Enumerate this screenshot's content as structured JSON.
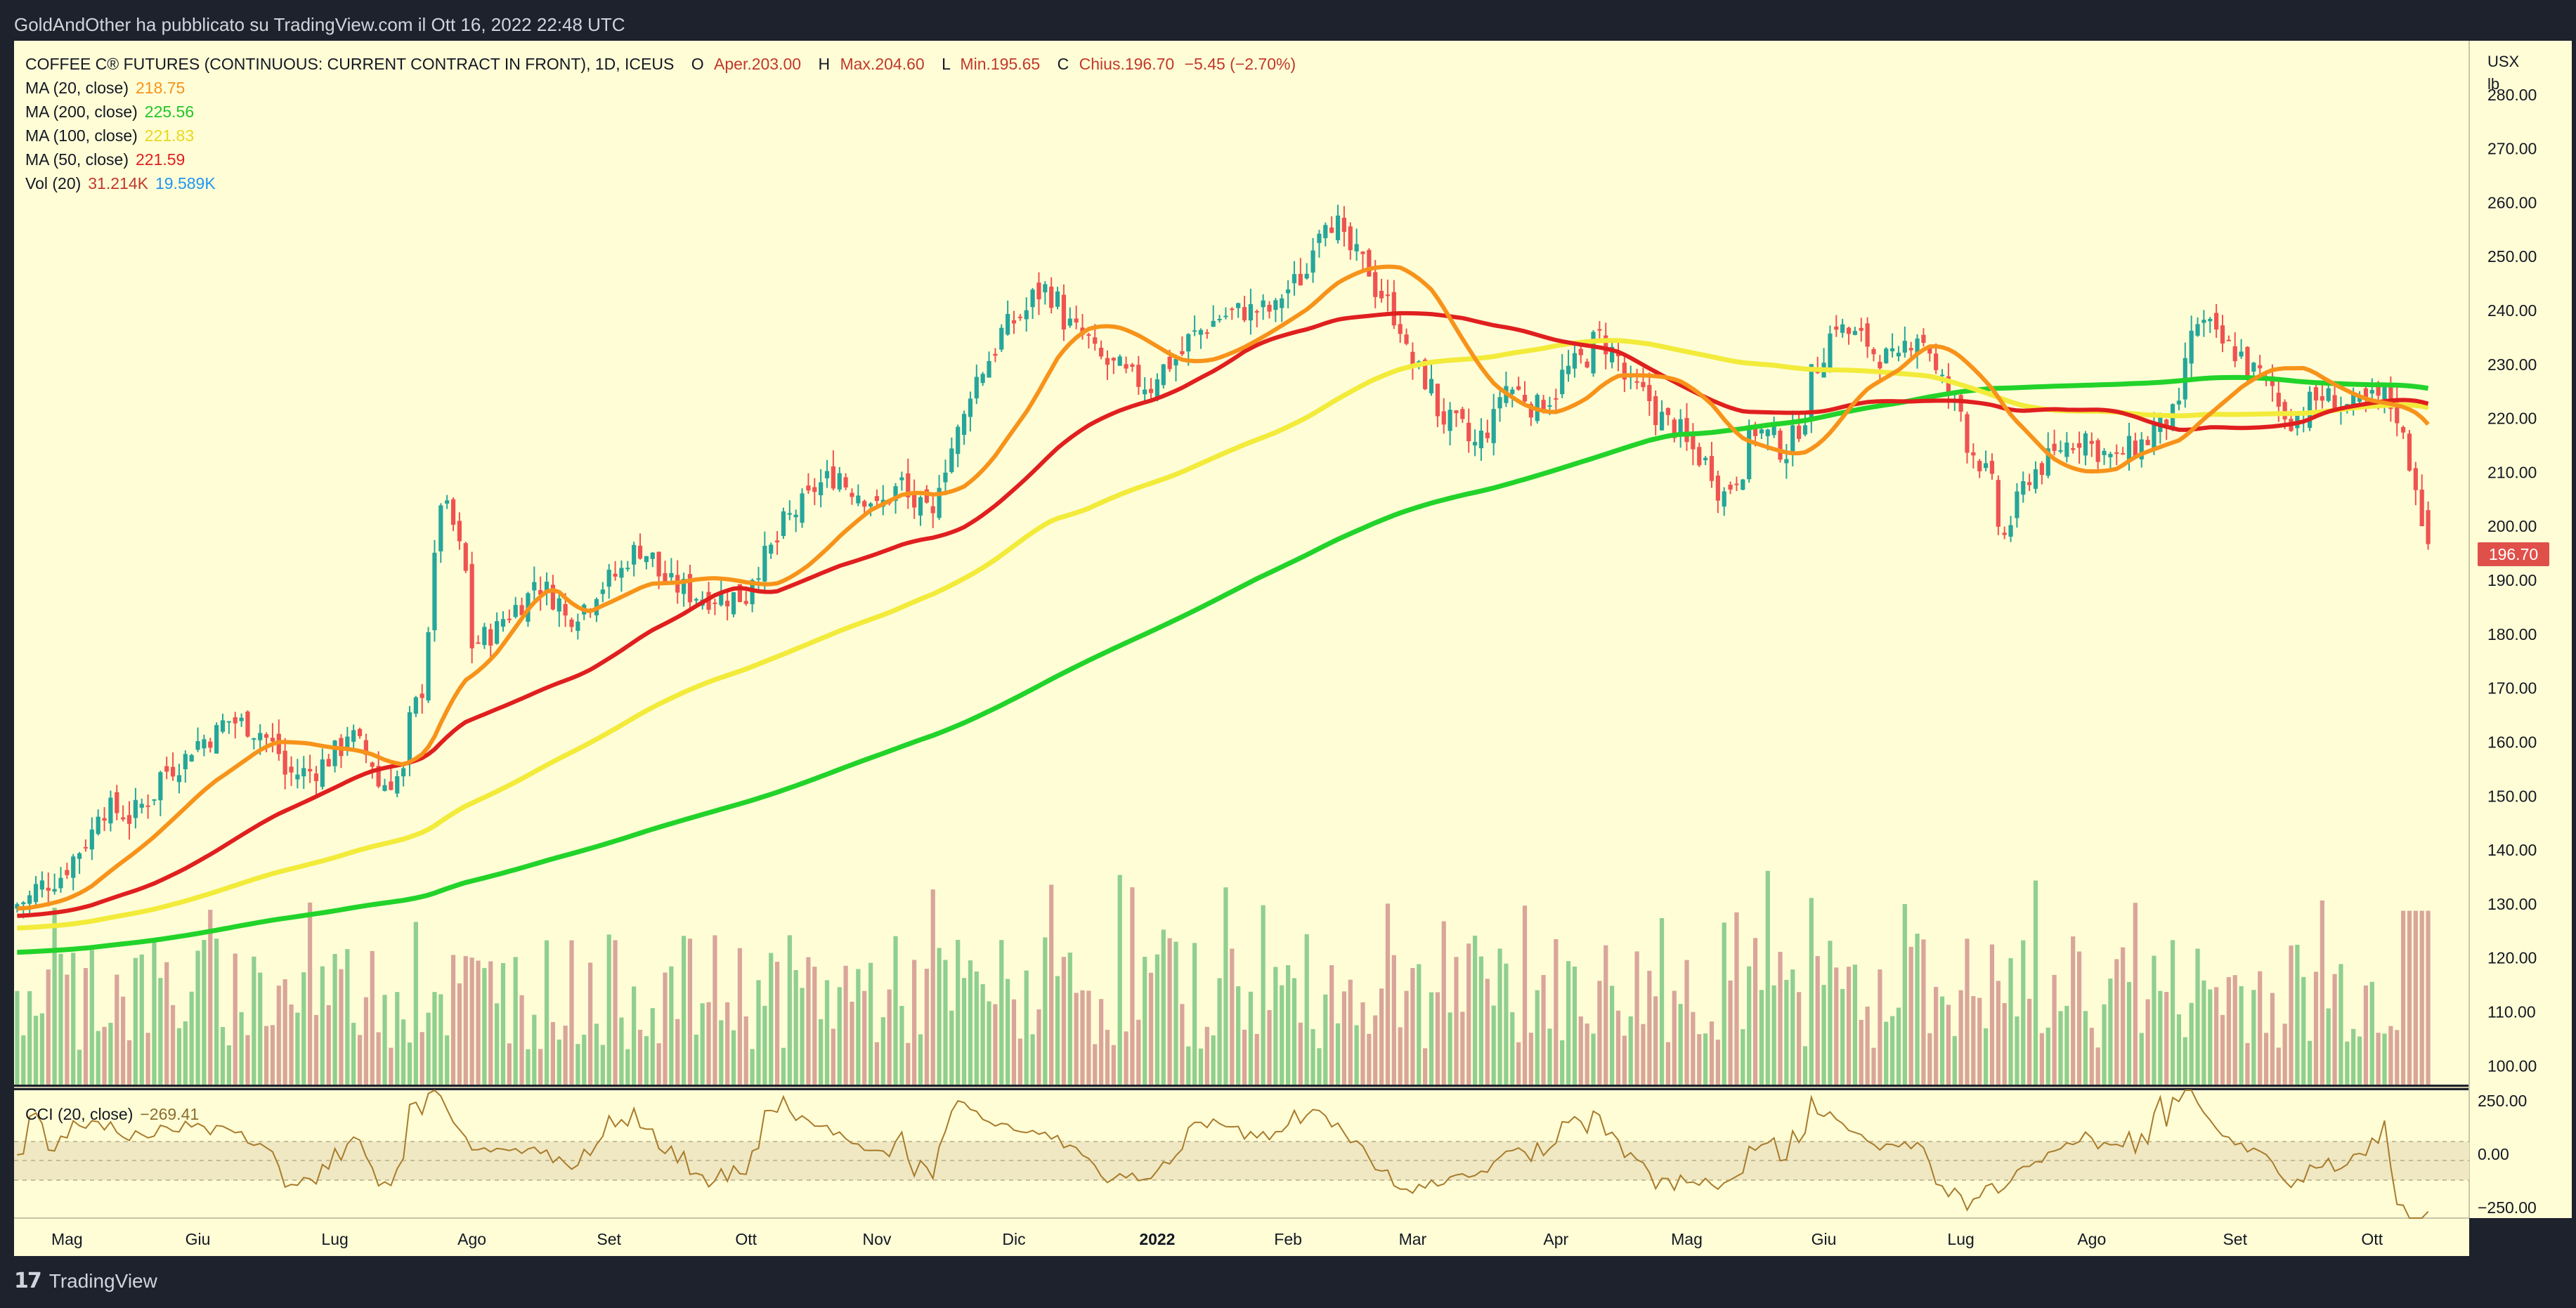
{
  "header": {
    "publisher": "GoldAndOther ha pubblicato su TradingView.com il Ott 16, 2022 22:48 UTC"
  },
  "footer": {
    "brand": "TradingView",
    "logo_mark": "17"
  },
  "legend": {
    "symbol": "COFFEE C® FUTURES (CONTINUOUS: CURRENT CONTRACT IN FRONT), 1D, ICEUS",
    "ohlc": {
      "o_label": "O",
      "o_text": "Aper.203.00",
      "h_label": "H",
      "h_text": "Max.204.60",
      "l_label": "L",
      "l_text": "Min.195.65",
      "c_label": "C",
      "c_text": "Chius.196.70",
      "change_text": "−5.45 (−2.70%)"
    },
    "indicators": [
      {
        "label": "MA (20, close)",
        "value": "218.75",
        "color": "#f7931a"
      },
      {
        "label": "MA (200, close)",
        "value": "225.56",
        "color": "#22c52a"
      },
      {
        "label": "MA (100, close)",
        "value": "221.83",
        "color": "#e8d81a"
      },
      {
        "label": "MA (50, close)",
        "value": "221.59",
        "color": "#e01f1f"
      }
    ],
    "volume": {
      "label": "Vol (20)",
      "value": "31.214K",
      "ma_value": "19.589K"
    }
  },
  "cci": {
    "label": "CCI (20, close)",
    "value": "−269.41",
    "levels": [
      250,
      0,
      -250
    ],
    "level_labels": [
      "250.00",
      "0.00",
      "−250.00"
    ]
  },
  "price_axis": {
    "unit": [
      "USX",
      "lb"
    ],
    "ticks": [
      280,
      270,
      260,
      250,
      240,
      230,
      220,
      210,
      200,
      190,
      180,
      170,
      160,
      150,
      140,
      130,
      120,
      110,
      100
    ],
    "last_price": "196.70"
  },
  "time_axis": {
    "labels": [
      "Mag",
      "Giu",
      "Lug",
      "Ago",
      "Set",
      "Ott",
      "Nov",
      "Dic",
      "2022",
      "Feb",
      "Mar",
      "Apr",
      "Mag",
      "Giu",
      "Lug",
      "Ago",
      "Set",
      "Ott"
    ]
  },
  "colors": {
    "plot_bg": "#fffdd6",
    "up_candle": "#26a69a",
    "down_candle": "#ef5350",
    "up_volume": "#8fcf8f",
    "down_volume": "#d9a59a",
    "ma20": "#f7931a",
    "ma50": "#e01f1f",
    "ma100": "#f2eb3a",
    "ma200": "#22d32a",
    "cci_line": "#a97b2c",
    "cci_band": "#efe8c2"
  },
  "chart_data": {
    "type": "candlestick",
    "instrument": "COFFEE C® FUTURES",
    "timeframe": "1D",
    "y_range": [
      96,
      290
    ],
    "price_anchors": [
      [
        "Apr 21, 2021",
        130
      ],
      [
        "May 3, 2021",
        137
      ],
      [
        "May 10, 2021",
        148
      ],
      [
        "May 17, 2021",
        146
      ],
      [
        "May 24, 2021",
        154
      ],
      [
        "Jun 1, 2021",
        160
      ],
      [
        "Jun 8, 2021",
        164
      ],
      [
        "Jun 15, 2021",
        162
      ],
      [
        "Jun 21, 2021",
        154
      ],
      [
        "Jun 28, 2021",
        155
      ],
      [
        "Jul 5, 2021",
        162
      ],
      [
        "Jul 12, 2021",
        152
      ],
      [
        "Jul 16, 2021",
        154
      ],
      [
        "Jul 21, 2021",
        170
      ],
      [
        "Jul 23, 2021",
        193
      ],
      [
        "Jul 26, 2021",
        205
      ],
      [
        "Jul 28, 2021",
        200
      ],
      [
        "Aug 2, 2021",
        178
      ],
      [
        "Aug 9, 2021",
        183
      ],
      [
        "Aug 16, 2021",
        190
      ],
      [
        "Aug 23, 2021",
        183
      ],
      [
        "Sep 1, 2021",
        190
      ],
      [
        "Sep 8, 2021",
        196
      ],
      [
        "Sep 15, 2021",
        189
      ],
      [
        "Sep 22, 2021",
        187
      ],
      [
        "Oct 1, 2021",
        187
      ],
      [
        "Oct 8, 2021",
        197
      ],
      [
        "Oct 15, 2021",
        205
      ],
      [
        "Oct 22, 2021",
        210
      ],
      [
        "Nov 1, 2021",
        203
      ],
      [
        "Nov 5, 2021",
        208
      ],
      [
        "Nov 12, 2021",
        201
      ],
      [
        "Nov 19, 2021",
        220
      ],
      [
        "Nov 26, 2021",
        233
      ],
      [
        "Dec 3, 2021",
        240
      ],
      [
        "Dec 8, 2021",
        244
      ],
      [
        "Dec 15, 2021",
        236
      ],
      [
        "Dec 22, 2021",
        230
      ],
      [
        "Dec 31, 2021",
        226
      ],
      [
        "Jan 7, 2022",
        232
      ],
      [
        "Jan 14, 2022",
        238
      ],
      [
        "Jan 21, 2022",
        240
      ],
      [
        "Jan 28, 2022",
        240
      ],
      [
        "Feb 4, 2022",
        247
      ],
      [
        "Feb 9, 2022",
        258
      ],
      [
        "Feb 15, 2022",
        251
      ],
      [
        "Feb 22, 2022",
        243
      ],
      [
        "Mar 1, 2022",
        230
      ],
      [
        "Mar 8, 2022",
        220
      ],
      [
        "Mar 15, 2022",
        215
      ],
      [
        "Mar 22, 2022",
        226
      ],
      [
        "Mar 29, 2022",
        222
      ],
      [
        "Apr 5, 2022",
        229
      ],
      [
        "Apr 12, 2022",
        235
      ],
      [
        "Apr 19, 2022",
        226
      ],
      [
        "Apr 26, 2022",
        220
      ],
      [
        "May 3, 2022",
        214
      ],
      [
        "May 10, 2022",
        206
      ],
      [
        "May 17, 2022",
        218
      ],
      [
        "May 24, 2022",
        214
      ],
      [
        "May 31, 2022",
        230
      ],
      [
        "Jun 3, 2022",
        238
      ],
      [
        "Jun 10, 2022",
        234
      ],
      [
        "Jun 17, 2022",
        230
      ],
      [
        "Jun 22, 2022",
        236
      ],
      [
        "Jun 29, 2022",
        225
      ],
      [
        "Jul 6, 2022",
        212
      ],
      [
        "Jul 12, 2022",
        198
      ],
      [
        "Jul 15, 2022",
        207
      ],
      [
        "Jul 22, 2022",
        213
      ],
      [
        "Jul 29, 2022",
        217
      ],
      [
        "Aug 5, 2022",
        212
      ],
      [
        "Aug 12, 2022",
        216
      ],
      [
        "Aug 19, 2022",
        221
      ],
      [
        "Aug 24, 2022",
        238
      ],
      [
        "Aug 31, 2022",
        233
      ],
      [
        "Sep 7, 2022",
        228
      ],
      [
        "Sep 14, 2022",
        220
      ],
      [
        "Sep 21, 2022",
        224
      ],
      [
        "Sep 28, 2022",
        222
      ],
      [
        "Oct 5, 2022",
        224
      ],
      [
        "Oct 10, 2022",
        216
      ],
      [
        "Oct 12, 2022",
        208
      ],
      [
        "Oct 13, 2022",
        202
      ],
      [
        "Oct 14, 2022",
        196.7
      ]
    ],
    "last_candle": {
      "open": 203.0,
      "high": 204.6,
      "low": 195.65,
      "close": 196.7,
      "change": -5.45,
      "change_pct": -2.7
    },
    "moving_averages_last": {
      "MA20": 218.75,
      "MA50": 221.59,
      "MA100": 221.83,
      "MA200": 225.56
    },
    "volume_last": 31214,
    "volume_ma20_last": 19589,
    "cci_last": -269.41,
    "cci_range": [
      -300,
      300
    ]
  }
}
